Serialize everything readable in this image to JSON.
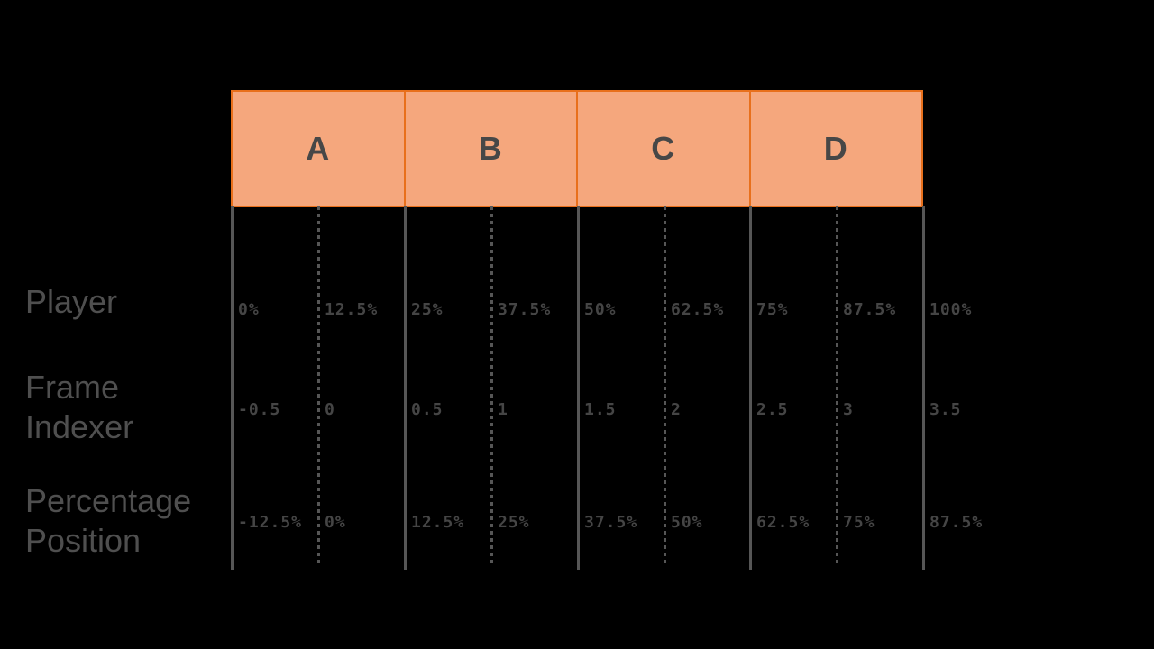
{
  "title": "Frame indexer percentage position diagram",
  "colors": {
    "background": "#000000",
    "box_fill": "#F5A77D",
    "box_border": "#E8701C",
    "box_letter": "#474747",
    "grid_line": "#565656",
    "row_label_text": "#4F4F4F",
    "value_text": "#454545"
  },
  "boxes": {
    "letters": [
      "A",
      "B",
      "C",
      "D"
    ]
  },
  "row_labels": {
    "player": "Player",
    "frame_indexer": "Frame Indexer",
    "percentage_position": "Percentage Position"
  },
  "value_rows": [
    {
      "id": "player",
      "values": [
        "0%",
        "12.5%",
        "25%",
        "37.5%",
        "50%",
        "62.5%",
        "75%",
        "87.5%",
        "100%"
      ]
    },
    {
      "id": "frame_indexer",
      "values": [
        "-0.5",
        "0",
        "0.5",
        "1",
        "1.5",
        "2",
        "2.5",
        "3",
        "3.5"
      ]
    },
    {
      "id": "percentage_position",
      "values": [
        "-12.5%",
        "0%",
        "12.5%",
        "25%",
        "37.5%",
        "50%",
        "62.5%",
        "75%",
        "87.5%"
      ]
    }
  ]
}
